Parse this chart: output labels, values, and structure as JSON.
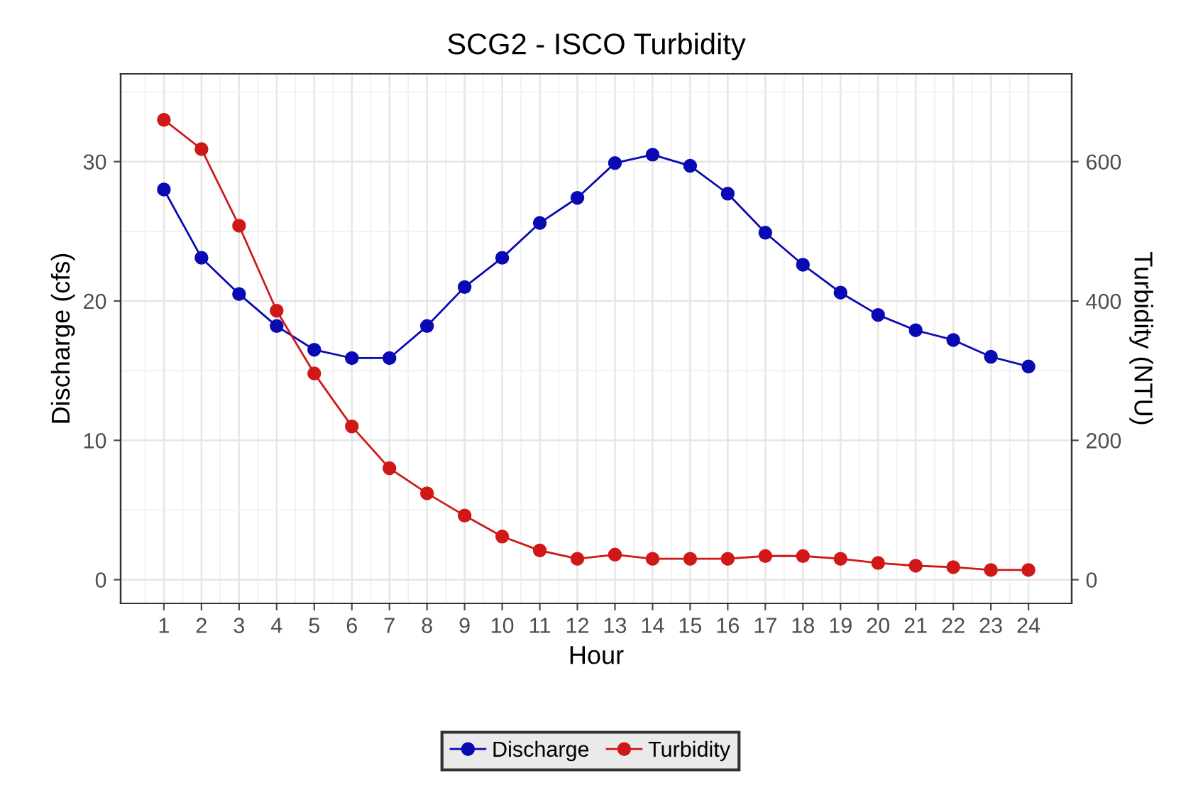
{
  "chart_data": {
    "type": "line",
    "title": "SCG2 - ISCO Turbidity",
    "xlabel": "Hour",
    "ylabel": "Discharge (cfs)",
    "y2label": "Turbidity (NTU)",
    "x": [
      1,
      2,
      3,
      4,
      5,
      6,
      7,
      8,
      9,
      10,
      11,
      12,
      13,
      14,
      15,
      16,
      17,
      18,
      19,
      20,
      21,
      22,
      23,
      24
    ],
    "series": [
      {
        "name": "Discharge",
        "color": "#0a0ab4",
        "values": [
          28,
          23.1,
          20.5,
          18.2,
          16.5,
          15.9,
          15.9,
          18.2,
          21,
          23.1,
          25.6,
          27.4,
          29.9,
          30.5,
          29.7,
          27.7,
          24.9,
          22.6,
          20.6,
          19,
          17.9,
          17.2,
          16,
          15.3
        ]
      },
      {
        "name": "Turbidity",
        "color": "#d01818",
        "axis": "y2",
        "values": [
          660,
          618,
          508,
          386,
          296,
          220,
          160,
          124,
          92,
          62,
          42,
          30,
          36,
          30,
          30,
          30,
          34,
          34,
          30,
          24,
          20,
          18,
          14,
          14
        ]
      }
    ],
    "xlim": [
      -0.15,
      25.15
    ],
    "xticks": [
      1,
      2,
      3,
      4,
      5,
      6,
      7,
      8,
      9,
      10,
      11,
      12,
      13,
      14,
      15,
      16,
      17,
      18,
      19,
      20,
      21,
      22,
      23,
      24
    ],
    "ylim": [
      -1.7,
      36.3
    ],
    "yticks": [
      0,
      10,
      20,
      30
    ],
    "y2lim": [
      -34,
      726
    ],
    "y2ticks": [
      0,
      200,
      400,
      600
    ],
    "grid": true,
    "legend": "bottom",
    "marker": "circle",
    "line_style": "solid"
  }
}
